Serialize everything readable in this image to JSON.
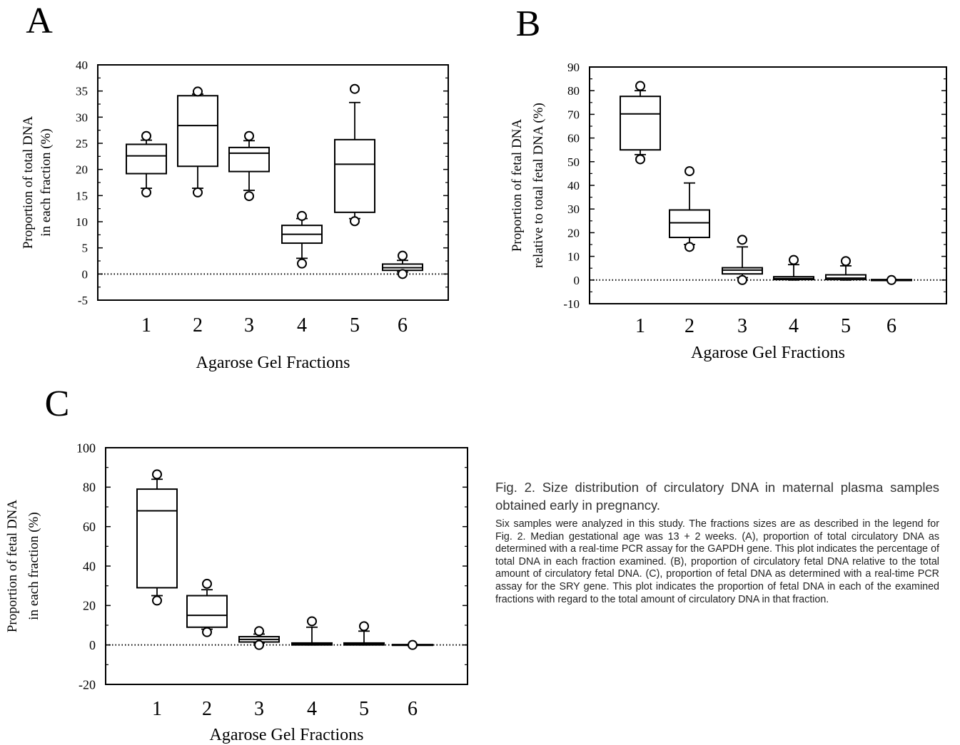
{
  "chart_data": [
    {
      "type": "box",
      "panel_label": "A",
      "xlabel": "Agarose Gel Fractions",
      "ylabel_lines": [
        "Proportion of total DNA",
        "in each fraction (%)"
      ],
      "ylim": [
        -5,
        40
      ],
      "yticks": [
        -5,
        0,
        5,
        10,
        15,
        20,
        25,
        30,
        35,
        40
      ],
      "categories": [
        "1",
        "2",
        "3",
        "4",
        "5",
        "6"
      ],
      "boxes": [
        {
          "q1": 19.2,
          "median": 22.6,
          "q3": 24.8,
          "whisker_low": 16.4,
          "whisker_high": 25.6,
          "outliers": [
            15.6,
            26.4
          ]
        },
        {
          "q1": 20.6,
          "median": 28.4,
          "q3": 34.1,
          "whisker_low": 16.4,
          "whisker_high": 34.4,
          "outliers": [
            15.6,
            34.9
          ]
        },
        {
          "q1": 19.6,
          "median": 23.1,
          "q3": 24.2,
          "whisker_low": 16.0,
          "whisker_high": 25.5,
          "outliers": [
            14.9,
            26.4
          ]
        },
        {
          "q1": 5.9,
          "median": 7.6,
          "q3": 9.3,
          "whisker_low": 3.0,
          "whisker_high": 10.6,
          "outliers": [
            2.0,
            11.1
          ]
        },
        {
          "q1": 11.8,
          "median": 21.0,
          "q3": 25.7,
          "whisker_low": 10.6,
          "whisker_high": 32.8,
          "outliers": [
            10.1,
            35.4
          ]
        },
        {
          "q1": 0.7,
          "median": 1.2,
          "q3": 1.9,
          "whisker_low": 0.4,
          "whisker_high": 2.6,
          "outliers": [
            0.0,
            3.5
          ]
        }
      ],
      "reference_line": 0
    },
    {
      "type": "box",
      "panel_label": "B",
      "xlabel": "Agarose Gel Fractions",
      "ylabel_lines": [
        "Proportion of fetal DNA",
        "relative to total fetal DNA (%)"
      ],
      "ylim": [
        -10,
        90
      ],
      "yticks": [
        -10,
        0,
        10,
        20,
        30,
        40,
        50,
        60,
        70,
        80,
        90
      ],
      "categories": [
        "1",
        "2",
        "3",
        "4",
        "5",
        "6"
      ],
      "boxes": [
        {
          "q1": 55.0,
          "median": 70.2,
          "q3": 77.6,
          "whisker_low": 53.0,
          "whisker_high": 80.0,
          "outliers": [
            51.0,
            82.0
          ]
        },
        {
          "q1": 18.0,
          "median": 24.2,
          "q3": 29.6,
          "whisker_low": 15.0,
          "whisker_high": 41.0,
          "outliers": [
            14.0,
            46.0
          ]
        },
        {
          "q1": 2.6,
          "median": 4.2,
          "q3": 5.2,
          "whisker_low": 1.0,
          "whisker_high": 14.0,
          "outliers": [
            0.0,
            17.0
          ]
        },
        {
          "q1": 0.2,
          "median": 0.6,
          "q3": 1.4,
          "whisker_low": 0.0,
          "whisker_high": 6.5,
          "outliers": [
            8.5
          ]
        },
        {
          "q1": 0.2,
          "median": 0.8,
          "q3": 2.2,
          "whisker_low": 0.0,
          "whisker_high": 6.0,
          "outliers": [
            8.0
          ]
        },
        {
          "q1": -0.2,
          "median": 0.0,
          "q3": 0.2,
          "whisker_low": -0.2,
          "whisker_high": 0.2,
          "outliers": [
            0.0
          ]
        }
      ],
      "reference_line": 0
    },
    {
      "type": "box",
      "panel_label": "C",
      "xlabel": "Agarose Gel Fractions",
      "ylabel_lines": [
        "Proportion of fetal DNA",
        "in each fraction (%)"
      ],
      "ylim": [
        -20,
        100
      ],
      "yticks": [
        -20,
        0,
        20,
        40,
        60,
        80,
        100
      ],
      "categories": [
        "1",
        "2",
        "3",
        "4",
        "5",
        "6"
      ],
      "boxes": [
        {
          "q1": 29.0,
          "median": 68.0,
          "q3": 79.0,
          "whisker_low": 25.0,
          "whisker_high": 84.0,
          "outliers": [
            22.5,
            86.5
          ]
        },
        {
          "q1": 9.0,
          "median": 15.0,
          "q3": 25.0,
          "whisker_low": 8.0,
          "whisker_high": 28.0,
          "outliers": [
            6.5,
            31.0
          ]
        },
        {
          "q1": 1.5,
          "median": 2.8,
          "q3": 4.2,
          "whisker_low": 1.0,
          "whisker_high": 5.5,
          "outliers": [
            0.0,
            7.0
          ]
        },
        {
          "q1": 0.0,
          "median": 0.5,
          "q3": 1.0,
          "whisker_low": 0.0,
          "whisker_high": 9.0,
          "outliers": [
            12.0
          ]
        },
        {
          "q1": 0.0,
          "median": 0.5,
          "q3": 1.0,
          "whisker_low": 0.0,
          "whisker_high": 7.0,
          "outliers": [
            9.5
          ]
        },
        {
          "q1": -0.2,
          "median": 0.0,
          "q3": 0.2,
          "whisker_low": -0.2,
          "whisker_high": 0.2,
          "outliers": [
            0.0
          ]
        }
      ],
      "reference_line": 0
    }
  ],
  "caption": {
    "title": "Fig. 2. Size distribution of circulatory DNA in maternal plasma samples obtained early in pregnancy.",
    "body": "Six samples were analyzed in this study. The fractions sizes are as described in the legend for Fig. 2. Median gestational age was 13 + 2 weeks. (A), proportion of total circulatory DNA as determined with a real-time PCR assay for the GAPDH gene. This plot indicates the percentage of total DNA in each fraction examined. (B), proportion of circulatory fetal DNA relative to the total amount of circulatory fetal DNA. (C), proportion of fetal DNA as determined with a real-time PCR assay for the SRY gene. This plot indicates the proportion of fetal DNA in each of the examined fractions with regard to the total amount of circulatory DNA in that fraction."
  }
}
